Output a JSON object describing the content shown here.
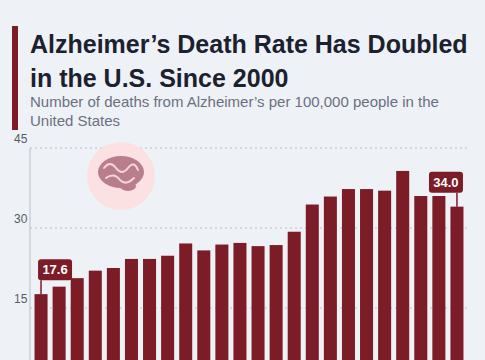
{
  "chart_data": {
    "type": "bar",
    "title": "Alzheimer’s Death Rate Has Doubled in the U.S. Since 2000",
    "subtitle": "Number of deaths from Alzheimer’s per 100,000 people in the United States",
    "categories": [
      null,
      null,
      null,
      null,
      null,
      null,
      null,
      null,
      null,
      null,
      null,
      null,
      null,
      null,
      null,
      null,
      null,
      null,
      null,
      null,
      null,
      null,
      null,
      null
    ],
    "values": [
      17.6,
      19.0,
      20.6,
      22.0,
      22.5,
      24.2,
      24.2,
      24.8,
      27.1,
      25.8,
      26.9,
      27.2,
      26.6,
      26.8,
      29.3,
      34.4,
      35.9,
      37.3,
      37.3,
      37.0,
      40.7,
      36.0,
      36.0,
      34.0
    ],
    "value_labels": [
      "17.6",
      null,
      null,
      null,
      null,
      null,
      null,
      null,
      null,
      null,
      null,
      null,
      null,
      null,
      null,
      null,
      null,
      null,
      null,
      null,
      null,
      null,
      null,
      "34.0"
    ],
    "data_labels": true,
    "color": "#7b1c27",
    "ylim": [
      0,
      45
    ],
    "yticks": [
      15,
      30,
      45
    ],
    "grid": true
  }
}
